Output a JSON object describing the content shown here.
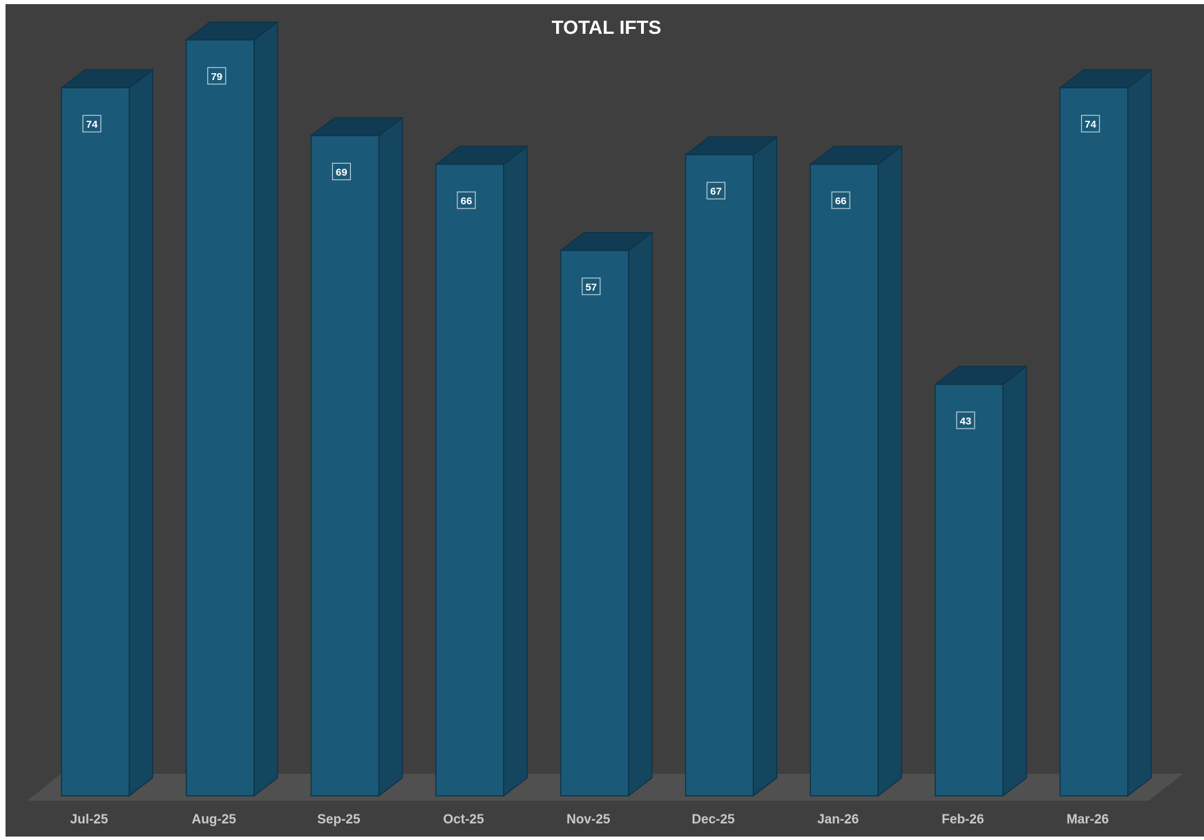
{
  "chart_data": {
    "type": "bar",
    "title": "TOTAL IFTS",
    "categories": [
      "Jul-25",
      "Aug-25",
      "Sep-25",
      "Oct-25",
      "Nov-25",
      "Dec-25",
      "Jan-26",
      "Feb-26",
      "Mar-26"
    ],
    "values": [
      74,
      79,
      69,
      66,
      57,
      67,
      66,
      43,
      74
    ],
    "data_labels": [
      "74",
      "79",
      "69",
      "66",
      "57",
      "67",
      "66",
      "43",
      "74"
    ],
    "xlabel": "",
    "ylabel": "",
    "ylim": [
      0,
      80
    ],
    "grid": false,
    "legend": "none",
    "style": "3d-column",
    "colors": {
      "background": "#3f3f3f",
      "frame": "#ffffff",
      "floor": "#505050",
      "bar_front": "#1a5a78",
      "bar_side": "#154660",
      "bar_top": "#113b52",
      "bar_edge": "#0e3347",
      "title": "#ffffff",
      "tick_label": "#c9c9c9",
      "data_label_text": "#ffffff",
      "data_label_border": "#c8d4dc"
    }
  }
}
